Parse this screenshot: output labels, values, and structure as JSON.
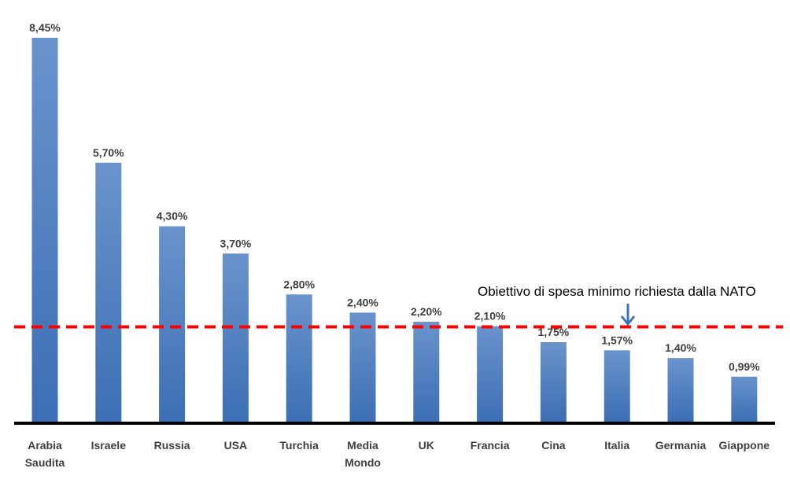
{
  "chart_data": {
    "type": "bar",
    "title": "",
    "xlabel": "",
    "ylabel": "",
    "ylim": [
      0,
      8.45
    ],
    "grid": false,
    "legend": "none",
    "categories": [
      [
        "Arabia",
        "Saudita"
      ],
      [
        "Israele"
      ],
      [
        "Russia"
      ],
      [
        "USA"
      ],
      [
        "Turchia"
      ],
      [
        "Media",
        "Mondo"
      ],
      [
        "UK"
      ],
      [
        "Francia"
      ],
      [
        "Cina"
      ],
      [
        "Italia"
      ],
      [
        "Germania"
      ],
      [
        "Giappone"
      ]
    ],
    "values": [
      8.45,
      5.7,
      4.3,
      3.7,
      2.8,
      2.4,
      2.2,
      2.1,
      1.75,
      1.57,
      1.4,
      0.99
    ],
    "data_labels": [
      "8,45%",
      "5,70%",
      "4,30%",
      "3,70%",
      "2,80%",
      "2,40%",
      "2,20%",
      "2,10%",
      "1,75%",
      "1,57%",
      "1,40%",
      "0,99%"
    ],
    "bar_color": "#4a7ec2",
    "reference_line": {
      "value": 2,
      "color": "#ff0000",
      "style": "dashed",
      "annotation": "Obiettivo di spesa minimo richiesta dalla NATO",
      "arrow_color": "#3d75bd"
    }
  }
}
